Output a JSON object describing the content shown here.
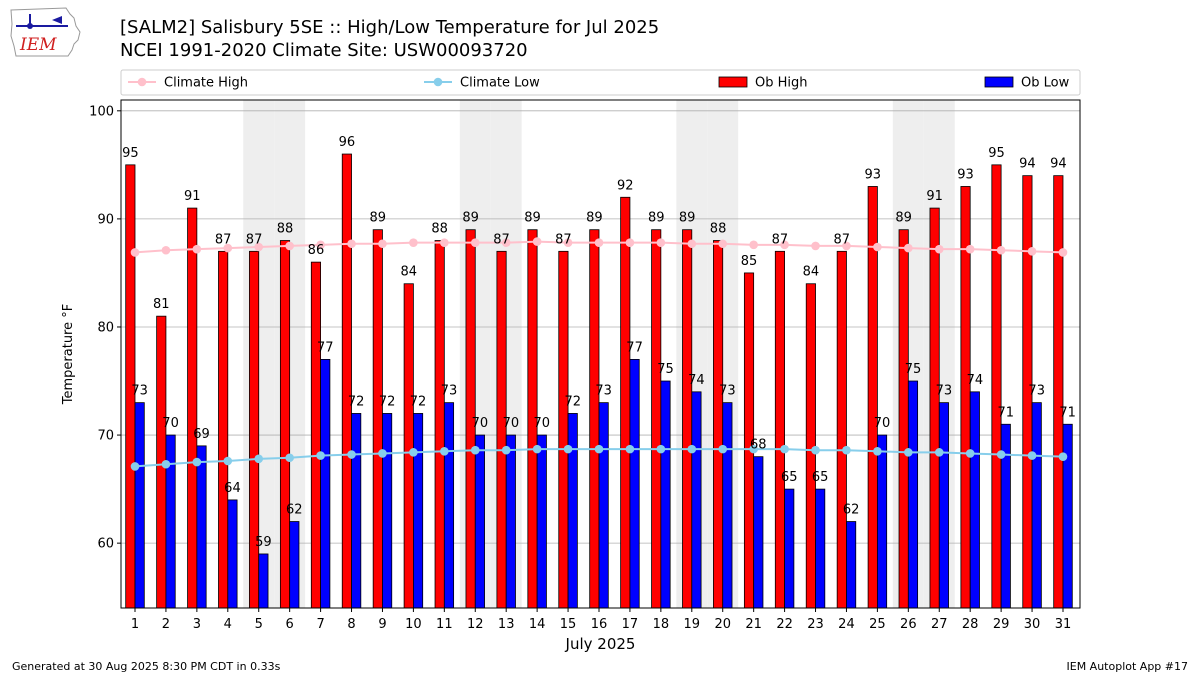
{
  "logo_text": "IEM",
  "title_line1": "[SALM2] Salisbury 5SE :: High/Low Temperature for Jul 2025",
  "title_line2": "NCEI 1991-2020 Climate Site: USW00093720",
  "footer_left": "Generated at 30 Aug 2025 8:30 PM CDT in 0.33s",
  "footer_right": "IEM Autoplot App #17",
  "colors": {
    "ob_high": "#ff0000",
    "ob_low": "#0000ff",
    "climate_high": "#ffc0cb",
    "climate_low": "#87ceeb",
    "weekend_shade": "#eeeeee",
    "grid": "#b0b0b0"
  },
  "chart_data": {
    "type": "bar",
    "title": "[SALM2] Salisbury 5SE :: High/Low Temperature for Jul 2025",
    "xlabel": "July 2025",
    "ylabel": "Temperature °F",
    "ylim": [
      54,
      101
    ],
    "yticks": [
      60,
      70,
      80,
      90,
      100
    ],
    "grid": true,
    "legend_position": "top",
    "categories": [
      "1",
      "2",
      "3",
      "4",
      "5",
      "6",
      "7",
      "8",
      "9",
      "10",
      "11",
      "12",
      "13",
      "14",
      "15",
      "16",
      "17",
      "18",
      "19",
      "20",
      "21",
      "22",
      "23",
      "24",
      "25",
      "26",
      "27",
      "28",
      "29",
      "30",
      "31"
    ],
    "shaded_days": [
      5,
      6,
      12,
      13,
      19,
      20,
      26,
      27
    ],
    "series": [
      {
        "name": "Climate High",
        "kind": "line",
        "values": [
          86.9,
          87.1,
          87.2,
          87.3,
          87.4,
          87.5,
          87.6,
          87.7,
          87.7,
          87.8,
          87.8,
          87.8,
          87.8,
          87.9,
          87.8,
          87.8,
          87.8,
          87.8,
          87.7,
          87.7,
          87.6,
          87.6,
          87.5,
          87.5,
          87.4,
          87.3,
          87.2,
          87.2,
          87.1,
          87.0,
          86.9
        ]
      },
      {
        "name": "Climate Low",
        "kind": "line",
        "values": [
          67.1,
          67.3,
          67.5,
          67.6,
          67.8,
          67.9,
          68.1,
          68.2,
          68.3,
          68.4,
          68.5,
          68.6,
          68.6,
          68.7,
          68.7,
          68.7,
          68.7,
          68.7,
          68.7,
          68.7,
          68.7,
          68.7,
          68.6,
          68.6,
          68.5,
          68.4,
          68.4,
          68.3,
          68.2,
          68.1,
          68.0
        ]
      },
      {
        "name": "Ob High",
        "kind": "bar",
        "values": [
          95,
          81,
          91,
          87,
          87,
          88,
          86,
          96,
          89,
          84,
          88,
          89,
          87,
          89,
          87,
          89,
          92,
          89,
          89,
          88,
          85,
          87,
          84,
          87,
          93,
          89,
          91,
          93,
          95,
          94,
          94
        ]
      },
      {
        "name": "Ob Low",
        "kind": "bar",
        "values": [
          73,
          70,
          69,
          64,
          59,
          62,
          77,
          72,
          72,
          72,
          73,
          70,
          70,
          70,
          72,
          73,
          77,
          75,
          74,
          73,
          68,
          65,
          65,
          62,
          70,
          75,
          73,
          74,
          71,
          73,
          71
        ]
      }
    ]
  }
}
